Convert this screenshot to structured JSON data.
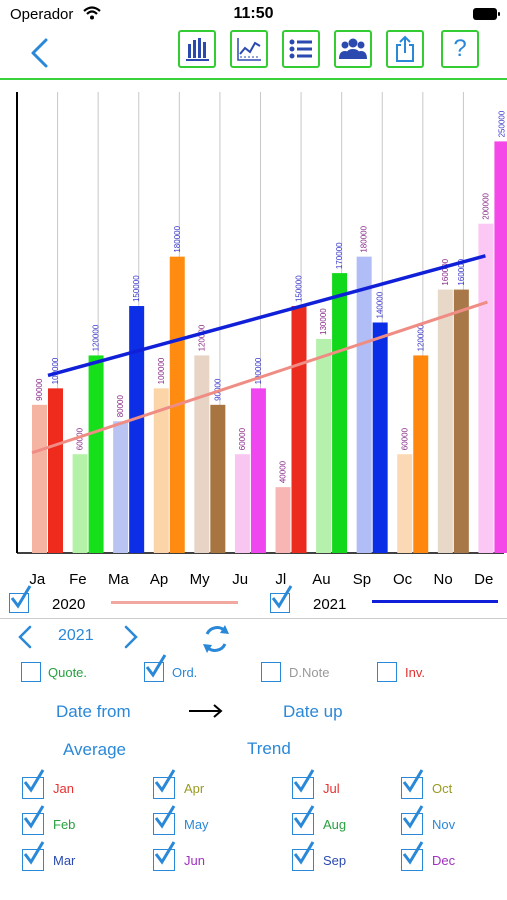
{
  "status": {
    "carrier": "Operador",
    "time": "11:50"
  },
  "toolbar": [
    "bar-chart-icon",
    "line-chart-icon",
    "list-icon",
    "users-icon",
    "share-icon",
    "help-icon"
  ],
  "help_label": "?",
  "chart_data": {
    "type": "bar",
    "categories": [
      "Ja",
      "Fe",
      "Ma",
      "Ap",
      "My",
      "Ju",
      "Jl",
      "Au",
      "Sp",
      "Oc",
      "No",
      "De"
    ],
    "ylim": [
      0,
      280000
    ],
    "series": [
      {
        "name": "2020",
        "values": [
          90000,
          60000,
          80000,
          100000,
          120000,
          60000,
          40000,
          130000,
          180000,
          60000,
          160000,
          200000
        ],
        "colors": [
          "#f5b4a2",
          "#b4f2a8",
          "#b9c4f3",
          "#fbd4a8",
          "#e8d4c4",
          "#f9c6f2",
          "#f7b6b3",
          "#b6f0ad",
          "#b0bdf6",
          "#fbd9b4",
          "#e8d8c8",
          "#fbc8f6"
        ],
        "label_color": "#8a2b8a"
      },
      {
        "name": "2021",
        "values": [
          100000,
          120000,
          150000,
          180000,
          90000,
          100000,
          150000,
          170000,
          140000,
          120000,
          160000,
          250000
        ],
        "colors": [
          "#ef2b1e",
          "#16e01a",
          "#0b2ee6",
          "#ff8c10",
          "#a87440",
          "#f046f0",
          "#ea2b1e",
          "#12d81c",
          "#0a2ee6",
          "#ff870e",
          "#a87848",
          "#f548e8"
        ],
        "label_color": "#3a39cc"
      }
    ],
    "trend_2020": {
      "color": "#ef8c84"
    },
    "trend_2021": {
      "color": "#1020d8"
    }
  },
  "legend": {
    "s1": "2020",
    "s2": "2021",
    "s1_color": "#f0a8a0",
    "s2_color": "#1020d8"
  },
  "year": "2021",
  "filters": [
    {
      "label": "Quote.",
      "checked": false,
      "color": "#28a040"
    },
    {
      "label": "Ord.",
      "checked": true,
      "color": "#2a88d8"
    },
    {
      "label": "D.Note",
      "checked": false,
      "color": "#999999"
    },
    {
      "label": "Inv.",
      "checked": false,
      "color": "#e03030"
    }
  ],
  "date_from": "Date from",
  "date_up": "Date up",
  "average": "Average",
  "trend": "Trend",
  "months": [
    {
      "label": "Jan",
      "color": "#e83030"
    },
    {
      "label": "Feb",
      "color": "#28a040"
    },
    {
      "label": "Mar",
      "color": "#2a4ab0"
    },
    {
      "label": "Apr",
      "color": "#9a9a20"
    },
    {
      "label": "May",
      "color": "#2a88d8"
    },
    {
      "label": "Jun",
      "color": "#a030c0"
    },
    {
      "label": "Jul",
      "color": "#e83030"
    },
    {
      "label": "Aug",
      "color": "#28a040"
    },
    {
      "label": "Sep",
      "color": "#2a4ab0"
    },
    {
      "label": "Oct",
      "color": "#9a9a20"
    },
    {
      "label": "Nov",
      "color": "#2a88d8"
    },
    {
      "label": "Dec",
      "color": "#a030c0"
    }
  ]
}
